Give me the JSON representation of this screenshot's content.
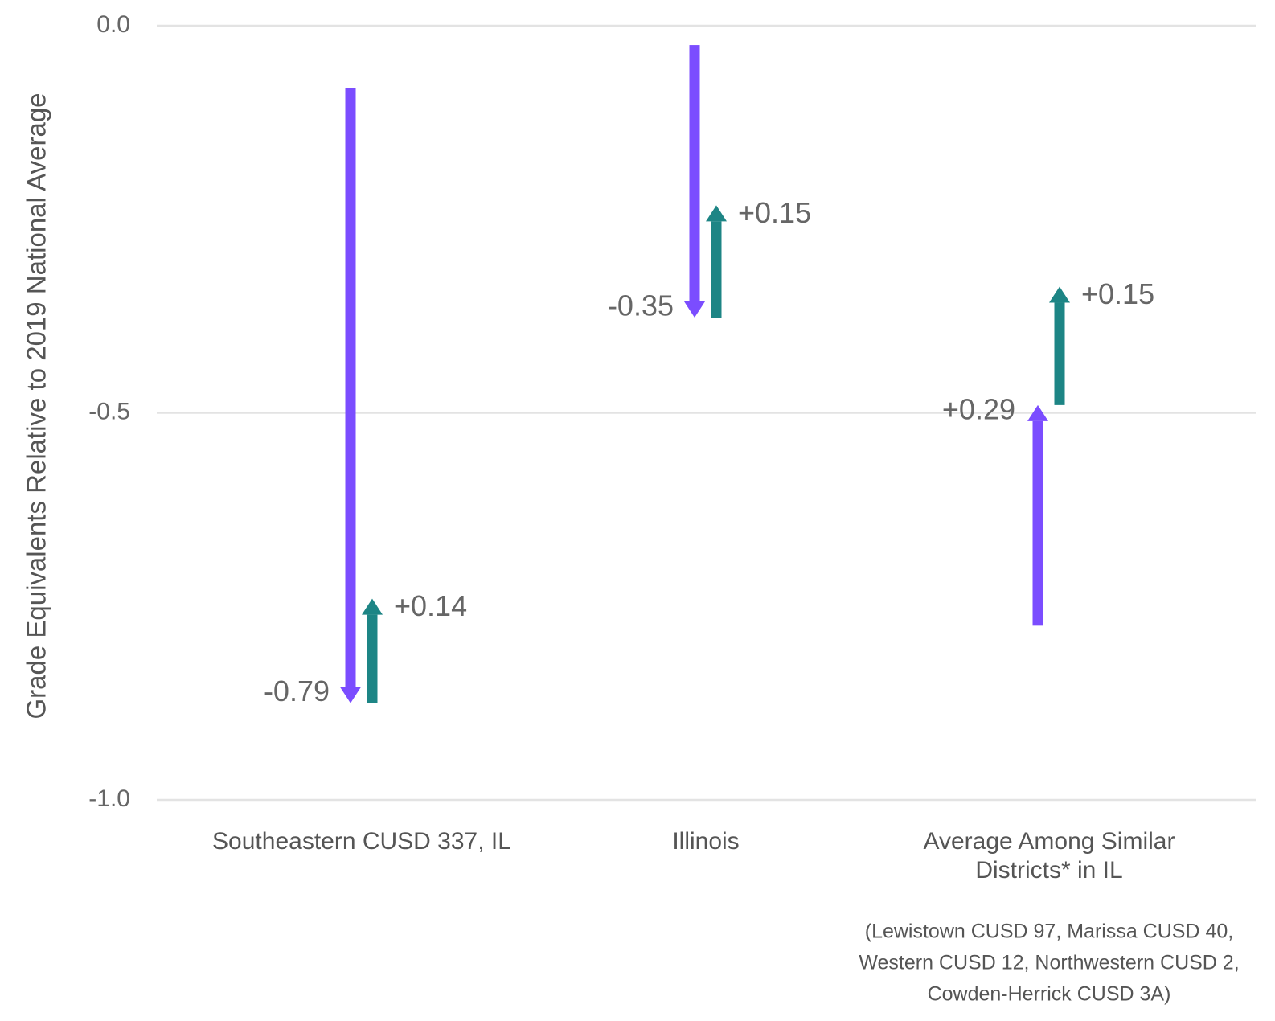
{
  "chart_data": {
    "type": "arrow",
    "ylabel": "Grade Equivalents Relative to 2019 National Average",
    "ylim": [
      -1.0,
      0.0
    ],
    "yticks": [
      {
        "value": 0.0,
        "label": "0.0"
      },
      {
        "value": -0.5,
        "label": "-0.5"
      },
      {
        "value": -1.0,
        "label": "-1.0"
      }
    ],
    "grid": true,
    "colors": {
      "decline": "#7b4dff",
      "recovery": "#1d8585",
      "grid": "#e3e3e3"
    },
    "categories": [
      {
        "label_lines": [
          "Southeastern CUSD 337, IL"
        ],
        "note_lines": [],
        "arrows": [
          {
            "kind": "decline",
            "from": -0.08,
            "to": -0.875,
            "label": "-0.79"
          },
          {
            "kind": "recovery",
            "from": -0.875,
            "to": -0.74,
            "label": "+0.14"
          }
        ]
      },
      {
        "label_lines": [
          "Illinois"
        ],
        "note_lines": [],
        "arrows": [
          {
            "kind": "decline",
            "from": -0.025,
            "to": -0.377,
            "label": "-0.35"
          },
          {
            "kind": "recovery",
            "from": -0.377,
            "to": -0.232,
            "label": "+0.15"
          }
        ]
      },
      {
        "label_lines": [
          "Average Among Similar",
          "Districts* in IL"
        ],
        "note_lines": [
          "(Lewistown CUSD 97, Marissa CUSD 40,",
          "Western CUSD 12, Northwestern CUSD 2,",
          "Cowden-Herrick CUSD 3A)"
        ],
        "arrows": [
          {
            "kind": "recovery-purple",
            "from": -0.775,
            "to": -0.49,
            "label": "+0.29"
          },
          {
            "kind": "recovery",
            "from": -0.49,
            "to": -0.337,
            "label": "+0.15"
          }
        ]
      }
    ]
  }
}
